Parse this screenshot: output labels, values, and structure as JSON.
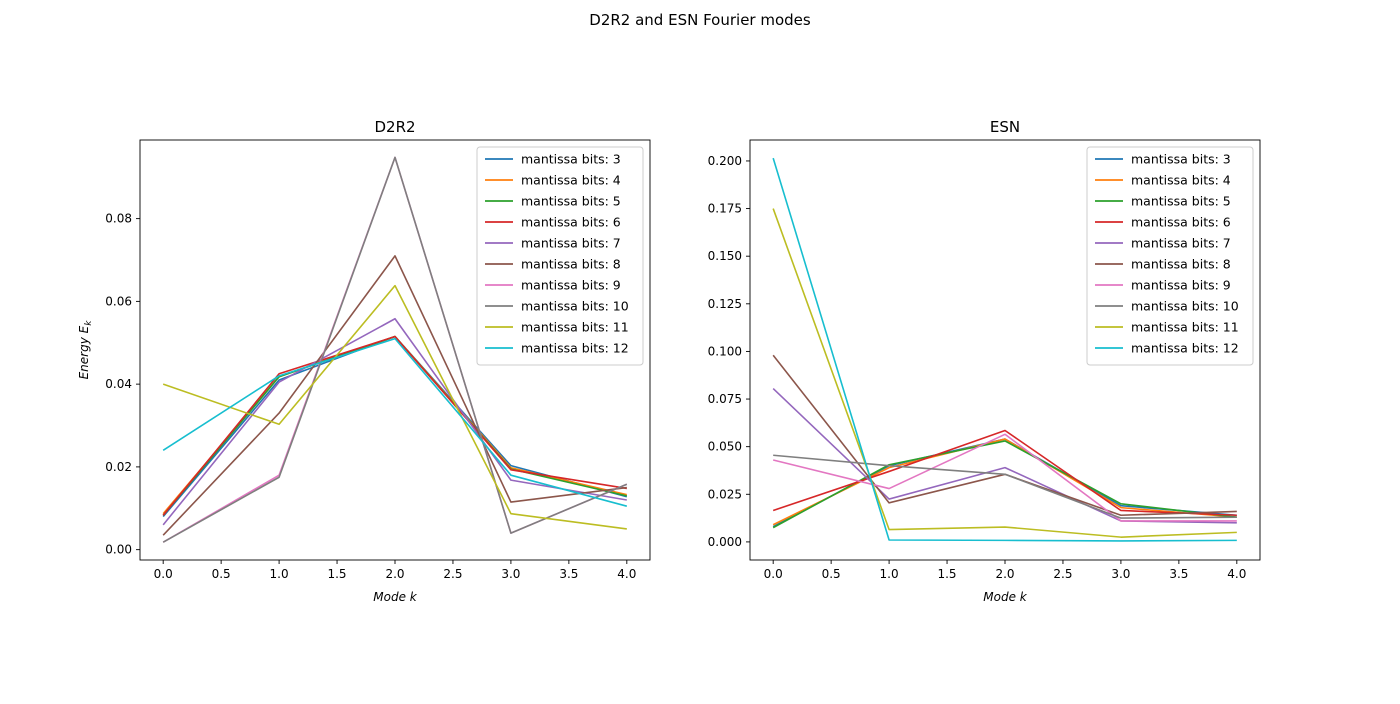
{
  "figure": {
    "suptitle": "D2R2 and ESN Fourier modes"
  },
  "series_styles": [
    {
      "name": "mantissa bits: 3",
      "color": "#1f77b4"
    },
    {
      "name": "mantissa bits: 4",
      "color": "#ff7f0e"
    },
    {
      "name": "mantissa bits: 5",
      "color": "#2ca02c"
    },
    {
      "name": "mantissa bits: 6",
      "color": "#d62728"
    },
    {
      "name": "mantissa bits: 7",
      "color": "#9467bd"
    },
    {
      "name": "mantissa bits: 8",
      "color": "#8c564b"
    },
    {
      "name": "mantissa bits: 9",
      "color": "#e377c2"
    },
    {
      "name": "mantissa bits: 10",
      "color": "#7f7f7f"
    },
    {
      "name": "mantissa bits: 11",
      "color": "#bcbd22"
    },
    {
      "name": "mantissa bits: 12",
      "color": "#17becf"
    }
  ],
  "chart_data": [
    {
      "type": "line",
      "title": "D2R2",
      "xlabel": "Mode k",
      "ylabel": "Energy E_k",
      "xlim": [
        -0.2,
        4.2
      ],
      "ylim": [
        -0.0025,
        0.099
      ],
      "xticks": [
        "0.0",
        "0.5",
        "1.0",
        "1.5",
        "2.0",
        "2.5",
        "3.0",
        "3.5",
        "4.0"
      ],
      "xtick_values": [
        0,
        0.5,
        1,
        1.5,
        2,
        2.5,
        3,
        3.5,
        4
      ],
      "yticks": [
        "0.00",
        "0.02",
        "0.04",
        "0.06",
        "0.08"
      ],
      "ytick_values": [
        0,
        0.02,
        0.04,
        0.06,
        0.08
      ],
      "legend": "top-right",
      "x": [
        0,
        1,
        2,
        3,
        4
      ],
      "series": [
        {
          "name": "mantissa bits: 3",
          "values": [
            0.008,
            0.041,
            0.0515,
            0.0203,
            0.0128
          ]
        },
        {
          "name": "mantissa bits: 4",
          "values": [
            0.0087,
            0.0418,
            0.0515,
            0.0198,
            0.0133
          ]
        },
        {
          "name": "mantissa bits: 5",
          "values": [
            0.0083,
            0.0418,
            0.0515,
            0.0195,
            0.013
          ]
        },
        {
          "name": "mantissa bits: 6",
          "values": [
            0.0083,
            0.0425,
            0.0515,
            0.0193,
            0.0148
          ]
        },
        {
          "name": "mantissa bits: 7",
          "values": [
            0.006,
            0.0405,
            0.0558,
            0.0168,
            0.012
          ]
        },
        {
          "name": "mantissa bits: 8",
          "values": [
            0.0035,
            0.033,
            0.071,
            0.0115,
            0.015
          ]
        },
        {
          "name": "mantissa bits: 9",
          "values": [
            0.0018,
            0.018,
            0.0948,
            0.004,
            0.0158
          ]
        },
        {
          "name": "mantissa bits: 10",
          "values": [
            0.0018,
            0.0175,
            0.0948,
            0.004,
            0.0158
          ]
        },
        {
          "name": "mantissa bits: 11",
          "values": [
            0.04,
            0.0303,
            0.0638,
            0.0087,
            0.005
          ]
        },
        {
          "name": "mantissa bits: 12",
          "values": [
            0.024,
            0.042,
            0.051,
            0.018,
            0.0105
          ]
        }
      ]
    },
    {
      "type": "line",
      "title": "ESN",
      "xlabel": "Mode k",
      "ylabel": "",
      "xlim": [
        -0.2,
        4.2
      ],
      "ylim": [
        -0.0095,
        0.211
      ],
      "xticks": [
        "0.0",
        "0.5",
        "1.0",
        "1.5",
        "2.0",
        "2.5",
        "3.0",
        "3.5",
        "4.0"
      ],
      "xtick_values": [
        0,
        0.5,
        1,
        1.5,
        2,
        2.5,
        3,
        3.5,
        4
      ],
      "yticks": [
        "0.000",
        "0.025",
        "0.050",
        "0.075",
        "0.100",
        "0.125",
        "0.150",
        "0.175",
        "0.200"
      ],
      "ytick_values": [
        0,
        0.025,
        0.05,
        0.075,
        0.1,
        0.125,
        0.15,
        0.175,
        0.2
      ],
      "legend": "top-right",
      "x": [
        0,
        1,
        2,
        3,
        4
      ],
      "series": [
        {
          "name": "mantissa bits: 3",
          "values": [
            0.008,
            0.04,
            0.054,
            0.019,
            0.014
          ]
        },
        {
          "name": "mantissa bits: 4",
          "values": [
            0.009,
            0.039,
            0.054,
            0.018,
            0.013
          ]
        },
        {
          "name": "mantissa bits: 5",
          "values": [
            0.0075,
            0.0405,
            0.053,
            0.02,
            0.013
          ]
        },
        {
          "name": "mantissa bits: 6",
          "values": [
            0.0165,
            0.037,
            0.0585,
            0.0165,
            0.014
          ]
        },
        {
          "name": "mantissa bits: 7",
          "values": [
            0.0805,
            0.0225,
            0.039,
            0.011,
            0.01
          ]
        },
        {
          "name": "mantissa bits: 8",
          "values": [
            0.098,
            0.0205,
            0.0355,
            0.014,
            0.016
          ]
        },
        {
          "name": "mantissa bits: 9",
          "values": [
            0.043,
            0.028,
            0.0565,
            0.011,
            0.011
          ]
        },
        {
          "name": "mantissa bits: 10",
          "values": [
            0.0455,
            0.04,
            0.0355,
            0.0125,
            0.013
          ]
        },
        {
          "name": "mantissa bits: 11",
          "values": [
            0.175,
            0.0065,
            0.0078,
            0.0025,
            0.005
          ]
        },
        {
          "name": "mantissa bits: 12",
          "values": [
            0.2015,
            0.001,
            0.0008,
            0.0005,
            0.0008
          ]
        }
      ]
    }
  ]
}
